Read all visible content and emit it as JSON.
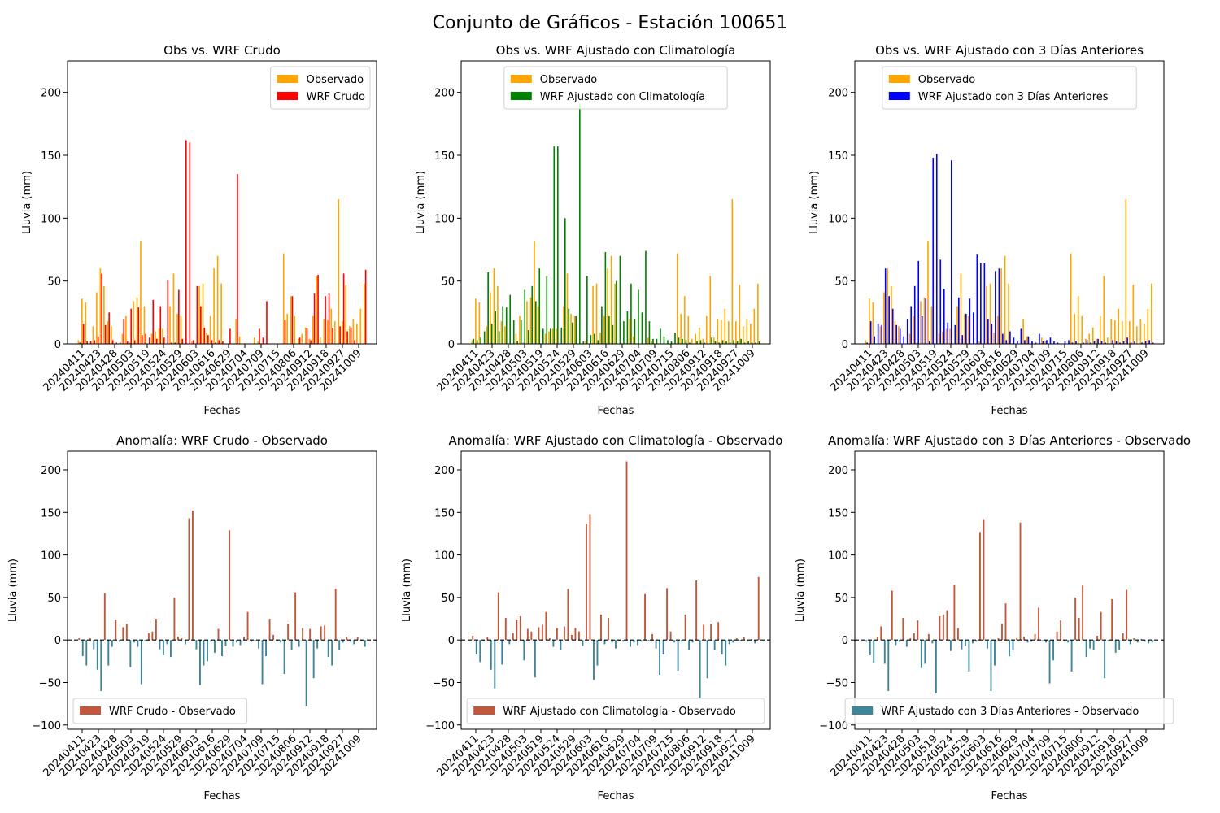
{
  "suptitle": "Conjunto de Gráficos - Estación 100651",
  "colors": {
    "obs": "#ffa500",
    "raw": "#ff0000",
    "clim": "#008000",
    "prev": "#0000ff",
    "anom_pos": "#c1573b",
    "anom_neg": "#3f8499"
  },
  "x_ticks": [
    "20240411",
    "20240423",
    "20240428",
    "20240503",
    "20240519",
    "20240524",
    "20240529",
    "20240603",
    "20240616",
    "20240629",
    "20240704",
    "20240709",
    "20240715",
    "20240806",
    "20240912",
    "20240918",
    "20240927",
    "20241009"
  ],
  "chart_data": [
    {
      "type": "bar",
      "title": "Obs vs. WRF Crudo",
      "xlabel": "Fechas",
      "ylabel": "Lluvia (mm)",
      "ylim": [
        0,
        225
      ],
      "yticks": [
        0,
        50,
        100,
        150,
        200
      ],
      "legend_placement": "upper-right",
      "series": [
        {
          "name": "Observado",
          "color_key": "obs",
          "values": [
            3,
            36,
            33,
            0,
            14,
            41,
            60,
            46,
            18,
            14,
            0,
            0,
            8,
            22,
            1,
            34,
            37,
            82,
            30,
            0,
            8,
            10,
            12,
            12,
            0,
            30,
            56,
            24,
            22,
            0,
            0,
            2,
            0,
            46,
            48,
            9,
            22,
            60,
            70,
            48,
            0,
            0,
            0,
            20,
            6,
            0,
            0,
            0,
            5,
            2,
            0,
            0,
            0,
            0,
            0,
            0,
            72,
            24,
            38,
            22,
            4,
            8,
            13,
            4,
            22,
            54,
            5,
            20,
            19,
            28,
            18,
            115,
            18,
            47,
            14,
            20,
            16,
            28,
            48
          ]
        },
        {
          "name": "WRF Crudo",
          "color_key": "raw",
          "values": [
            1,
            16,
            2,
            2,
            3,
            6,
            56,
            15,
            25,
            3,
            1,
            1,
            20,
            2,
            28,
            3,
            29,
            7,
            8,
            5,
            35,
            4,
            30,
            5,
            51,
            1,
            1,
            43,
            4,
            162,
            160,
            3,
            46,
            30,
            13,
            7,
            3,
            1,
            3,
            2,
            0,
            12,
            0,
            135,
            0,
            0,
            0,
            0,
            0,
            12,
            5,
            34,
            0,
            0,
            0,
            0,
            19,
            0,
            38,
            0,
            5,
            0,
            13,
            3,
            40,
            55,
            0,
            38,
            40,
            13,
            0,
            14,
            56,
            10,
            13,
            3,
            0,
            0,
            59
          ]
        }
      ]
    },
    {
      "type": "bar",
      "title": "Obs vs. WRF Ajustado con Climatología",
      "xlabel": "Fechas",
      "ylabel": "Lluvia (mm)",
      "ylim": [
        0,
        225
      ],
      "yticks": [
        0,
        50,
        100,
        150,
        200
      ],
      "legend_placement": "upper-center",
      "series": [
        {
          "name": "Observado",
          "color_key": "obs",
          "values": [
            3,
            36,
            33,
            0,
            14,
            41,
            60,
            46,
            18,
            14,
            0,
            0,
            8,
            22,
            1,
            34,
            37,
            82,
            30,
            0,
            8,
            10,
            12,
            12,
            0,
            30,
            56,
            24,
            22,
            0,
            0,
            2,
            0,
            46,
            48,
            9,
            22,
            60,
            70,
            48,
            0,
            0,
            0,
            20,
            6,
            0,
            0,
            0,
            5,
            2,
            0,
            0,
            0,
            0,
            0,
            0,
            72,
            24,
            38,
            22,
            4,
            8,
            13,
            4,
            22,
            54,
            5,
            20,
            19,
            28,
            18,
            115,
            18,
            47,
            14,
            20,
            16,
            28,
            48
          ]
        },
        {
          "name": "WRF Ajustado con Climatología",
          "color_key": "clim",
          "values": [
            4,
            3,
            5,
            10,
            57,
            16,
            26,
            10,
            30,
            29,
            39,
            19,
            2,
            19,
            43,
            11,
            46,
            34,
            60,
            12,
            54,
            12,
            157,
            157,
            13,
            100,
            28,
            17,
            22,
            191,
            2,
            54,
            7,
            8,
            3,
            30,
            73,
            22,
            15,
            50,
            70,
            18,
            26,
            48,
            20,
            43,
            25,
            74,
            18,
            4,
            4,
            12,
            6,
            3,
            2,
            9,
            5,
            4,
            3,
            1,
            0,
            2,
            3,
            1,
            0,
            5,
            2,
            1,
            3,
            2,
            1,
            3,
            2,
            4,
            1,
            2,
            1,
            1,
            2
          ]
        }
      ]
    },
    {
      "type": "bar",
      "title": "Obs vs. WRF Ajustado con 3 Días Anteriores",
      "xlabel": "Fechas",
      "ylabel": "Lluvia (mm)",
      "ylim": [
        0,
        225
      ],
      "yticks": [
        0,
        50,
        100,
        150,
        200
      ],
      "legend_placement": "upper-center",
      "series": [
        {
          "name": "Observado",
          "color_key": "obs",
          "values": [
            3,
            36,
            33,
            0,
            14,
            41,
            60,
            46,
            18,
            14,
            0,
            0,
            8,
            22,
            1,
            34,
            37,
            82,
            30,
            0,
            8,
            10,
            12,
            12,
            0,
            30,
            56,
            24,
            22,
            0,
            0,
            2,
            0,
            46,
            48,
            9,
            22,
            60,
            70,
            48,
            0,
            0,
            0,
            20,
            6,
            0,
            0,
            0,
            5,
            2,
            0,
            0,
            0,
            0,
            0,
            0,
            72,
            24,
            38,
            22,
            4,
            8,
            13,
            4,
            22,
            54,
            5,
            20,
            19,
            28,
            18,
            115,
            18,
            47,
            14,
            20,
            16,
            28,
            48
          ]
        },
        {
          "name": "WRF Ajustado con 3 Días Anteriores",
          "color_key": "prev",
          "values": [
            1,
            18,
            6,
            16,
            15,
            60,
            38,
            28,
            15,
            12,
            6,
            20,
            30,
            46,
            66,
            22,
            36,
            2,
            148,
            151,
            67,
            44,
            17,
            146,
            15,
            37,
            7,
            24,
            36,
            25,
            71,
            64,
            64,
            20,
            16,
            58,
            60,
            8,
            3,
            10,
            5,
            2,
            12,
            3,
            6,
            2,
            1,
            8,
            2,
            3,
            5,
            2,
            1,
            0,
            2,
            3,
            1,
            2,
            0,
            1,
            3,
            1,
            2,
            4,
            2,
            1,
            0,
            3,
            2,
            1,
            2,
            5,
            1,
            2,
            0,
            1,
            2,
            3,
            1
          ]
        }
      ]
    },
    {
      "type": "bar",
      "title": "Anomalía: WRF Crudo - Observado",
      "xlabel": "Fechas",
      "ylabel": "Lluvia (mm)",
      "ylim": [
        -105,
        222
      ],
      "yticks": [
        -100,
        -50,
        0,
        50,
        100,
        150,
        200
      ],
      "legend_placement": "lower-left",
      "legend": [
        {
          "label": "WRF Crudo - Observado",
          "color_key": "anom_pos"
        }
      ],
      "series": [
        {
          "name": "WRF Crudo - Observado",
          "values": [
            2,
            -19,
            -30,
            2,
            -11,
            -35,
            -60,
            55,
            -30,
            -8,
            24,
            -2,
            15,
            19,
            -32,
            -3,
            -8,
            -52,
            -1,
            8,
            10,
            25,
            -11,
            -18,
            -5,
            -20,
            50,
            4,
            2,
            -5,
            143,
            152,
            -11,
            -53,
            -30,
            -25,
            -2,
            -15,
            13,
            -19,
            -7,
            129,
            -8,
            -3,
            -6,
            4,
            33,
            -2,
            -1,
            -10,
            -52,
            -19,
            25,
            6,
            -2,
            -3,
            -40,
            19,
            -12,
            56,
            -8,
            14,
            -78,
            13,
            -45,
            -10,
            16,
            17,
            -20,
            -30,
            60,
            -12,
            -3,
            4,
            -2,
            -5,
            3,
            -1,
            -8
          ]
        }
      ]
    },
    {
      "type": "bar",
      "title": "Anomalía: WRF Ajustado con Climatología - Observado",
      "xlabel": "Fechas",
      "ylabel": "Lluvia (mm)",
      "ylim": [
        -105,
        222
      ],
      "yticks": [
        -100,
        -50,
        0,
        50,
        100,
        150,
        200
      ],
      "legend_placement": "lower-center",
      "legend": [
        {
          "label": "WRF Ajustado con Climatologia - Observado",
          "color_key": "anom_pos"
        }
      ],
      "series": [
        {
          "name": "WRF Ajustado con Climatologia - Observado",
          "values": [
            5,
            -17,
            -26,
            -1,
            3,
            -35,
            -57,
            56,
            -29,
            26,
            -5,
            8,
            24,
            28,
            -24,
            13,
            10,
            -44,
            15,
            18,
            33,
            2,
            -8,
            14,
            -12,
            16,
            60,
            6,
            14,
            10,
            -7,
            137,
            148,
            -47,
            -30,
            30,
            -5,
            26,
            -3,
            -10,
            -1,
            -2,
            210,
            -8,
            -3,
            -6,
            -2,
            54,
            -1,
            7,
            -10,
            -41,
            -17,
            61,
            10,
            -3,
            -36,
            -2,
            30,
            -12,
            -3,
            70,
            -68,
            18,
            -45,
            19,
            -12,
            21,
            -17,
            -30,
            -5,
            -3,
            2,
            -1,
            3,
            -2,
            1,
            -4,
            74
          ]
        }
      ]
    },
    {
      "type": "bar",
      "title": "Anomalía: WRF Ajustado con 3 Días Anteriores - Observado",
      "xlabel": "Fechas",
      "ylabel": "Lluvia (mm)",
      "ylim": [
        -105,
        222
      ],
      "yticks": [
        -100,
        -50,
        0,
        50,
        100,
        150,
        200
      ],
      "legend_placement": "lower-center",
      "legend": [
        {
          "label": "WRF Ajustado con 3 Días Anteriores - Observado",
          "color_key": "anom_neg"
        }
      ],
      "series": [
        {
          "name": "WRF Ajustado con 3 Días Anteriores - Observado",
          "values": [
            -2,
            -18,
            -27,
            3,
            16,
            -28,
            -60,
            58,
            -6,
            -2,
            26,
            -8,
            2,
            8,
            23,
            -33,
            -28,
            7,
            -4,
            -63,
            28,
            30,
            35,
            -13,
            65,
            14,
            -11,
            -7,
            -37,
            -4,
            -2,
            127,
            142,
            -10,
            -60,
            -30,
            2,
            19,
            43,
            -19,
            -12,
            2,
            138,
            4,
            -3,
            -2,
            7,
            38,
            -1,
            -3,
            -51,
            -24,
            10,
            23,
            -1,
            -3,
            -37,
            50,
            26,
            64,
            -20,
            -10,
            -12,
            5,
            33,
            -45,
            -1,
            48,
            -15,
            -12,
            8,
            59,
            -5,
            2,
            -3,
            1,
            -2,
            -4,
            -3
          ]
        }
      ]
    }
  ]
}
